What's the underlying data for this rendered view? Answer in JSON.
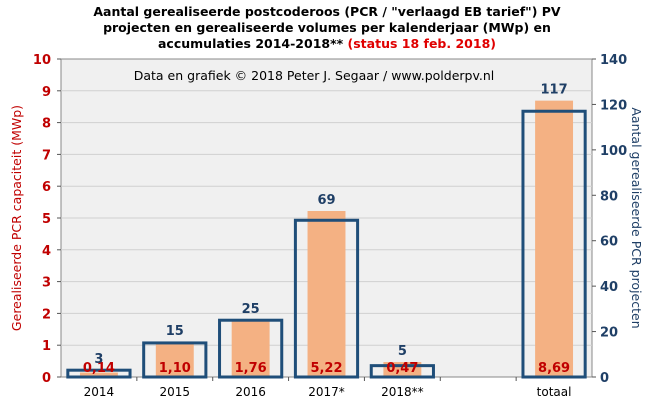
{
  "title": {
    "line1": "Aantal gerealiseerde postcoderoos (PCR / \"verlaagd EB tarief\") PV",
    "line2": "projecten en gerealiseerde volumes per kalenderjaar (MWp) en",
    "line3_main": "accumulaties 2014-2018**",
    "line3_status": "(status 18 feb. 2018)"
  },
  "credit": "Data en grafiek © 2018 Peter J. Segaar / www.polderpv.nl",
  "colors": {
    "bar_fill": "#f4b183",
    "box_stroke": "#1f4e79",
    "label_red": "#c00000",
    "label_blue": "#1f3f66",
    "plot_bg": "#f0f0f0",
    "grid": "#d0d0d0"
  },
  "chart_data": {
    "type": "bar",
    "categories": [
      "2014",
      "2015",
      "2016",
      "2017*",
      "2018**",
      "",
      "totaal"
    ],
    "ylabel_left": "Gerealiseerde  PCR capaciteit (MWp)",
    "ylabel_right": "Aantal gerealiseerde  PCR projecten",
    "ylim_left": [
      0,
      10
    ],
    "ylim_right": [
      0,
      140
    ],
    "yticks_left": [
      "0",
      "1",
      "2",
      "3",
      "4",
      "5",
      "6",
      "7",
      "8",
      "9",
      "10"
    ],
    "yticks_right": [
      "0",
      "20",
      "40",
      "60",
      "80",
      "100",
      "120",
      "140"
    ],
    "grid": true,
    "series": [
      {
        "axis": "left",
        "style": "filled-bar",
        "values": [
          0.14,
          1.1,
          1.76,
          5.22,
          0.47,
          null,
          8.69
        ],
        "labels": [
          "0,14",
          "1,10",
          "1,76",
          "5,22",
          "0,47",
          "",
          "8,69"
        ]
      },
      {
        "axis": "right",
        "style": "outlined-box",
        "values": [
          3,
          15,
          25,
          69,
          5,
          null,
          117
        ],
        "labels": [
          "3",
          "15",
          "25",
          "69",
          "5",
          "",
          "117"
        ]
      }
    ]
  }
}
